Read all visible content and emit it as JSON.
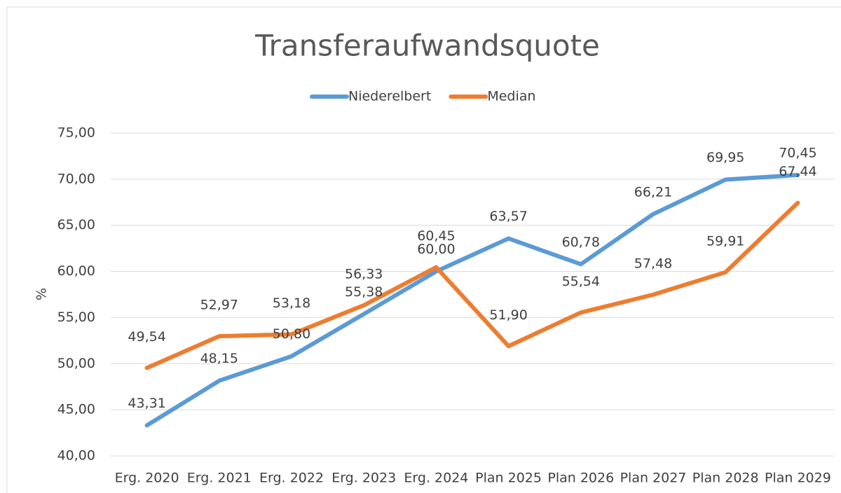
{
  "chart_data": {
    "type": "line",
    "title": "Transferaufwandsquote",
    "y_label": "%",
    "categories": [
      "Erg. 2020",
      "Erg. 2021",
      "Erg. 2022",
      "Erg. 2023",
      "Erg. 2024",
      "Plan 2025",
      "Plan 2026",
      "Plan 2027",
      "Plan 2028",
      "Plan 2029"
    ],
    "series": [
      {
        "name": "Niederelbert",
        "color": "#5b9bd5",
        "values": [
          43.31,
          48.15,
          50.8,
          55.38,
          60.0,
          63.57,
          60.78,
          66.21,
          69.95,
          70.45
        ],
        "value_labels": [
          "43,31",
          "48,15",
          "50,80",
          "55,38",
          "60,00",
          "63,57",
          "60,78",
          "66,21",
          "69,95",
          "70,45"
        ]
      },
      {
        "name": "Median",
        "color": "#ed7d31",
        "values": [
          49.54,
          52.97,
          53.18,
          56.33,
          60.45,
          51.9,
          55.54,
          57.48,
          59.91,
          67.44
        ],
        "value_labels": [
          "49,54",
          "52,97",
          "53,18",
          "56,33",
          "60,45",
          "51,90",
          "55,54",
          "57,48",
          "59,91",
          "67,44"
        ]
      }
    ],
    "ylim": [
      40,
      75
    ],
    "yticks": [
      {
        "value": 40,
        "label": "40,00"
      },
      {
        "value": 45,
        "label": "45,00"
      },
      {
        "value": 50,
        "label": "50,00"
      },
      {
        "value": 55,
        "label": "55,00"
      },
      {
        "value": 60,
        "label": "60,00"
      },
      {
        "value": 65,
        "label": "65,00"
      },
      {
        "value": 70,
        "label": "70,00"
      },
      {
        "value": 75,
        "label": "75,00"
      }
    ],
    "grid": true,
    "legend": "top"
  }
}
